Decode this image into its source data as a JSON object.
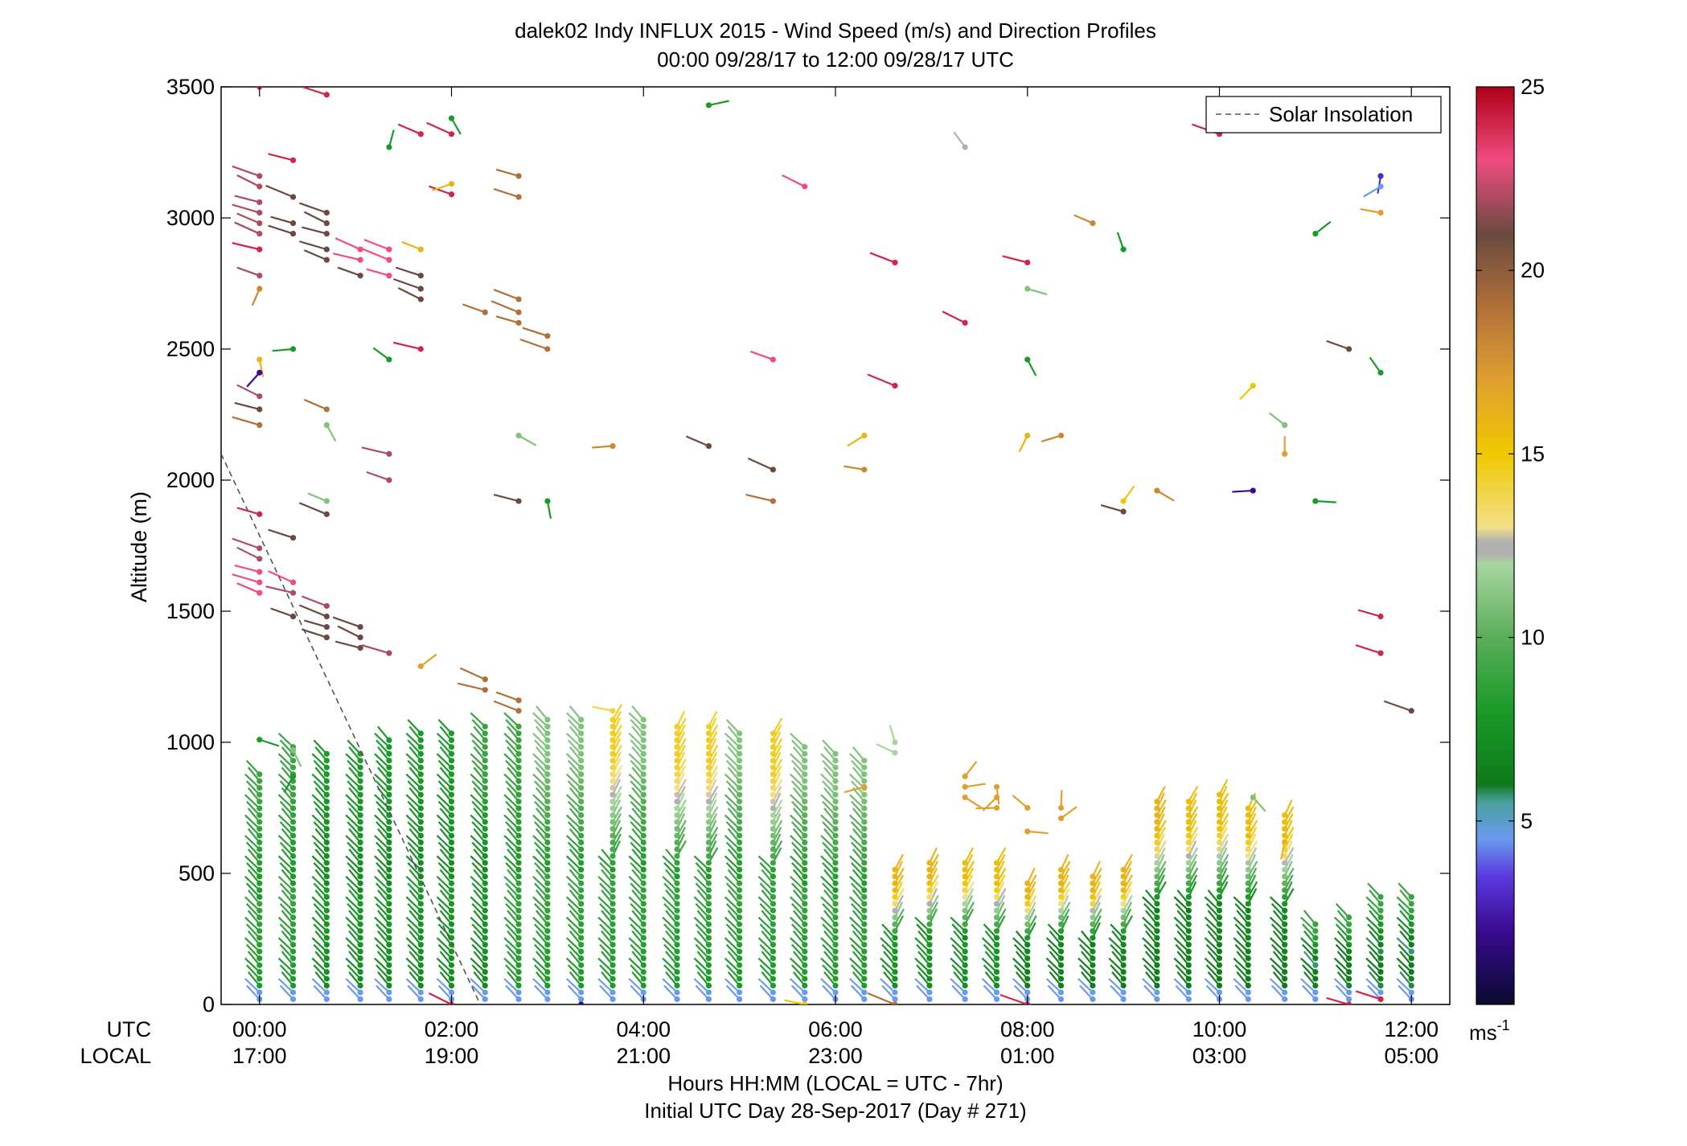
{
  "chart_data": {
    "type": "scatter",
    "title": "dalek02 Indy INFLUX 2015 - Wind Speed (m/s) and Direction Profiles",
    "subtitle": "00:00 09/28/17 to 12:00 09/28/17  UTC",
    "ylabel": "Altitude (m)",
    "xlabel": "Hours HH:MM  (LOCAL = UTC - 7hr)",
    "xlabel2": "Initial UTC Day 28-Sep-2017 (Day # 271)",
    "row_label_utc": "UTC",
    "row_label_local": "LOCAL",
    "xlim": [
      -0.4,
      12.4
    ],
    "ylim": [
      0,
      3500
    ],
    "yticks": [
      0,
      500,
      1000,
      1500,
      2000,
      2500,
      3000,
      3500
    ],
    "ytick_labels": [
      "0",
      "500",
      "1000",
      "1500",
      "2000",
      "2500",
      "3000",
      "3500"
    ],
    "xticks": [
      0,
      2,
      4,
      6,
      8,
      10,
      12
    ],
    "xtick_labels_utc": [
      "00:00",
      "02:00",
      "04:00",
      "06:00",
      "08:00",
      "10:00",
      "12:00"
    ],
    "xtick_labels_local": [
      "17:00",
      "19:00",
      "21:00",
      "23:00",
      "01:00",
      "03:00",
      "05:00"
    ],
    "legend": {
      "label": "Solar Insolation",
      "position": "top-right"
    },
    "solar_insolation": [
      [
        -0.4,
        2100
      ],
      [
        2.3,
        0
      ]
    ],
    "colorbar": {
      "label": "ms",
      "label_sup": "-1",
      "range": [
        0,
        25
      ],
      "ticks": [
        5,
        10,
        15,
        20,
        25
      ],
      "tick_labels": [
        "5",
        "10",
        "15",
        "20",
        "25"
      ],
      "stops": [
        [
          0,
          "#0a0a30"
        ],
        [
          2,
          "#3a0a90"
        ],
        [
          3.5,
          "#5a3adf"
        ],
        [
          4.5,
          "#6a9aee"
        ],
        [
          5.5,
          "#4ba0a0"
        ],
        [
          6,
          "#0f7a1a"
        ],
        [
          8,
          "#1a9a28"
        ],
        [
          10,
          "#5aae5a"
        ],
        [
          12,
          "#a8d5a0"
        ],
        [
          12.3,
          "#b0b0b0"
        ],
        [
          12.6,
          "#b0b0b0"
        ],
        [
          13,
          "#f2e08a"
        ],
        [
          15,
          "#f0c800"
        ],
        [
          17,
          "#e0a030"
        ],
        [
          19,
          "#b07038"
        ],
        [
          21,
          "#6a4a40"
        ],
        [
          23,
          "#f04c80"
        ],
        [
          25,
          "#b00018"
        ]
      ]
    },
    "wind_profiles_low": [
      {
        "t": 0.0,
        "top": 900,
        "lower_speed": 8,
        "upper_speed": 9
      },
      {
        "t": 0.35,
        "top": 1000,
        "lower_speed": 8,
        "upper_speed": 9
      },
      {
        "t": 0.7,
        "top": 980,
        "lower_speed": 7,
        "upper_speed": 8
      },
      {
        "t": 1.05,
        "top": 960,
        "lower_speed": 7,
        "upper_speed": 8
      },
      {
        "t": 1.35,
        "top": 1020,
        "lower_speed": 7,
        "upper_speed": 8
      },
      {
        "t": 1.68,
        "top": 1050,
        "lower_speed": 7,
        "upper_speed": 8
      },
      {
        "t": 2.0,
        "top": 1040,
        "lower_speed": 7,
        "upper_speed": 8
      },
      {
        "t": 2.35,
        "top": 1060,
        "lower_speed": 7,
        "upper_speed": 9
      },
      {
        "t": 2.7,
        "top": 1080,
        "lower_speed": 8,
        "upper_speed": 9
      },
      {
        "t": 3.0,
        "top": 1100,
        "lower_speed": 8,
        "upper_speed": 11
      },
      {
        "t": 3.35,
        "top": 1100,
        "lower_speed": 8,
        "upper_speed": 11
      },
      {
        "t": 3.68,
        "top": 1110,
        "lower_speed": 8,
        "upper_speed": 14.5
      },
      {
        "t": 4.0,
        "top": 1100,
        "lower_speed": 8,
        "upper_speed": 11
      },
      {
        "t": 4.35,
        "top": 1080,
        "lower_speed": 8,
        "upper_speed": 14.5
      },
      {
        "t": 4.68,
        "top": 1070,
        "lower_speed": 8,
        "upper_speed": 14.5
      },
      {
        "t": 5.0,
        "top": 1050,
        "lower_speed": 8,
        "upper_speed": 11
      },
      {
        "t": 5.35,
        "top": 1040,
        "lower_speed": 8,
        "upper_speed": 14.5
      },
      {
        "t": 5.68,
        "top": 1000,
        "lower_speed": 8,
        "upper_speed": 11
      },
      {
        "t": 6.0,
        "top": 960,
        "lower_speed": 8,
        "upper_speed": 11
      },
      {
        "t": 6.3,
        "top": 940,
        "lower_speed": 8,
        "upper_speed": 11
      },
      {
        "t": 6.62,
        "top": 520,
        "lower_speed": 7,
        "upper_speed": 16
      },
      {
        "t": 6.98,
        "top": 560,
        "lower_speed": 7,
        "upper_speed": 16
      },
      {
        "t": 7.35,
        "top": 560,
        "lower_speed": 7,
        "upper_speed": 15.5
      },
      {
        "t": 7.68,
        "top": 540,
        "lower_speed": 7,
        "upper_speed": 15.5
      },
      {
        "t": 8.0,
        "top": 480,
        "lower_speed": 6,
        "upper_speed": 16
      },
      {
        "t": 8.35,
        "top": 520,
        "lower_speed": 6,
        "upper_speed": 16
      },
      {
        "t": 8.68,
        "top": 500,
        "lower_speed": 6,
        "upper_speed": 16
      },
      {
        "t": 9.0,
        "top": 520,
        "lower_speed": 6,
        "upper_speed": 16
      },
      {
        "t": 9.35,
        "top": 780,
        "lower_speed": 6,
        "upper_speed": 16
      },
      {
        "t": 9.68,
        "top": 780,
        "lower_speed": 6,
        "upper_speed": 15.5
      },
      {
        "t": 10.0,
        "top": 800,
        "lower_speed": 6,
        "upper_speed": 15.5
      },
      {
        "t": 10.3,
        "top": 760,
        "lower_speed": 6,
        "upper_speed": 15.5
      },
      {
        "t": 10.68,
        "top": 740,
        "lower_speed": 6,
        "upper_speed": 15.5
      },
      {
        "t": 11.0,
        "top": 320,
        "lower_speed": 5.5,
        "upper_speed": 9
      },
      {
        "t": 11.35,
        "top": 340,
        "lower_speed": 5.5,
        "upper_speed": 9
      },
      {
        "t": 11.68,
        "top": 420,
        "lower_speed": 5.5,
        "upper_speed": 9
      },
      {
        "t": 12.0,
        "top": 430,
        "lower_speed": 5.5,
        "upper_speed": 9
      }
    ],
    "wind_barbs_high": [
      {
        "t": 0.0,
        "z": 3500,
        "spd": 24
      },
      {
        "t": 0.7,
        "z": 3470,
        "spd": 24
      },
      {
        "t": 0.0,
        "z": 3160,
        "spd": 22
      },
      {
        "t": 0.0,
        "z": 3120,
        "spd": 22
      },
      {
        "t": 0.0,
        "z": 3060,
        "spd": 22
      },
      {
        "t": 0.0,
        "z": 3020,
        "spd": 22
      },
      {
        "t": 0.0,
        "z": 2980,
        "spd": 22
      },
      {
        "t": 0.0,
        "z": 2940,
        "spd": 22
      },
      {
        "t": 0.0,
        "z": 2880,
        "spd": 24
      },
      {
        "t": 0.0,
        "z": 2780,
        "spd": 22
      },
      {
        "t": 0.0,
        "z": 2730,
        "spd": 18
      },
      {
        "t": 0.35,
        "z": 3080,
        "spd": 21
      },
      {
        "t": 0.35,
        "z": 2980,
        "spd": 21
      },
      {
        "t": 0.35,
        "z": 2940,
        "spd": 21
      },
      {
        "t": 0.7,
        "z": 3020,
        "spd": 21
      },
      {
        "t": 0.7,
        "z": 2980,
        "spd": 21
      },
      {
        "t": 0.7,
        "z": 2940,
        "spd": 21
      },
      {
        "t": 0.7,
        "z": 2880,
        "spd": 21
      },
      {
        "t": 0.7,
        "z": 2840,
        "spd": 21
      },
      {
        "t": 1.05,
        "z": 2880,
        "spd": 23
      },
      {
        "t": 1.05,
        "z": 2840,
        "spd": 23
      },
      {
        "t": 1.05,
        "z": 2780,
        "spd": 21
      },
      {
        "t": 1.35,
        "z": 2880,
        "spd": 23
      },
      {
        "t": 1.35,
        "z": 2840,
        "spd": 23
      },
      {
        "t": 1.35,
        "z": 2780,
        "spd": 23
      },
      {
        "t": 1.68,
        "z": 2780,
        "spd": 21
      },
      {
        "t": 1.68,
        "z": 2730,
        "spd": 21
      },
      {
        "t": 1.68,
        "z": 2690,
        "spd": 21
      },
      {
        "t": 0.35,
        "z": 3220,
        "spd": 24
      },
      {
        "t": 1.35,
        "z": 3270,
        "spd": 8
      },
      {
        "t": 1.68,
        "z": 3320,
        "spd": 24
      },
      {
        "t": 2.0,
        "z": 3320,
        "spd": 24
      },
      {
        "t": 2.0,
        "z": 3380,
        "spd": 8
      },
      {
        "t": 2.0,
        "z": 3090,
        "spd": 24
      },
      {
        "t": 2.0,
        "z": 3130,
        "spd": 16
      },
      {
        "t": 1.68,
        "z": 2880,
        "spd": 16
      },
      {
        "t": 2.7,
        "z": 3160,
        "spd": 19
      },
      {
        "t": 2.7,
        "z": 3080,
        "spd": 19
      },
      {
        "t": 4.68,
        "z": 3430,
        "spd": 8
      },
      {
        "t": 5.68,
        "z": 3120,
        "spd": 23
      },
      {
        "t": 0.0,
        "z": 2460,
        "spd": 16
      },
      {
        "t": 0.0,
        "z": 2410,
        "spd": 2
      },
      {
        "t": 0.35,
        "z": 2500,
        "spd": 8
      },
      {
        "t": 1.35,
        "z": 2460,
        "spd": 8
      },
      {
        "t": 1.68,
        "z": 2500,
        "spd": 24
      },
      {
        "t": 2.35,
        "z": 2640,
        "spd": 19
      },
      {
        "t": 2.7,
        "z": 2690,
        "spd": 19
      },
      {
        "t": 2.7,
        "z": 2640,
        "spd": 19
      },
      {
        "t": 2.7,
        "z": 2600,
        "spd": 19
      },
      {
        "t": 3.0,
        "z": 2550,
        "spd": 19
      },
      {
        "t": 3.0,
        "z": 2500,
        "spd": 19
      },
      {
        "t": 0.0,
        "z": 2320,
        "spd": 22
      },
      {
        "t": 0.0,
        "z": 2270,
        "spd": 21
      },
      {
        "t": 0.0,
        "z": 2210,
        "spd": 19
      },
      {
        "t": 0.7,
        "z": 2270,
        "spd": 19
      },
      {
        "t": 0.7,
        "z": 2210,
        "spd": 11
      },
      {
        "t": 1.35,
        "z": 2100,
        "spd": 22
      },
      {
        "t": 1.35,
        "z": 2000,
        "spd": 22
      },
      {
        "t": 0.7,
        "z": 1920,
        "spd": 11
      },
      {
        "t": 0.7,
        "z": 1870,
        "spd": 21
      },
      {
        "t": 0.0,
        "z": 1870,
        "spd": 24
      },
      {
        "t": 0.35,
        "z": 1780,
        "spd": 21
      },
      {
        "t": 2.7,
        "z": 2170,
        "spd": 11
      },
      {
        "t": 3.0,
        "z": 1920,
        "spd": 8
      },
      {
        "t": 2.7,
        "z": 1920,
        "spd": 21
      },
      {
        "t": 3.68,
        "z": 2130,
        "spd": 18
      },
      {
        "t": 4.68,
        "z": 2130,
        "spd": 21
      },
      {
        "t": 5.35,
        "z": 2040,
        "spd": 21
      },
      {
        "t": 5.35,
        "z": 1920,
        "spd": 19
      },
      {
        "t": 5.35,
        "z": 2460,
        "spd": 23
      },
      {
        "t": 6.62,
        "z": 2830,
        "spd": 24
      },
      {
        "t": 6.62,
        "z": 2360,
        "spd": 24
      },
      {
        "t": 6.3,
        "z": 2170,
        "spd": 16
      },
      {
        "t": 6.3,
        "z": 2040,
        "spd": 18
      },
      {
        "t": 7.35,
        "z": 3270,
        "spd": 12.4
      },
      {
        "t": 7.35,
        "z": 2600,
        "spd": 24
      },
      {
        "t": 8.0,
        "z": 2830,
        "spd": 24
      },
      {
        "t": 8.0,
        "z": 2730,
        "spd": 11
      },
      {
        "t": 8.0,
        "z": 2460,
        "spd": 8
      },
      {
        "t": 8.0,
        "z": 2170,
        "spd": 16
      },
      {
        "t": 8.35,
        "z": 2170,
        "spd": 18
      },
      {
        "t": 8.68,
        "z": 2980,
        "spd": 18
      },
      {
        "t": 9.0,
        "z": 2880,
        "spd": 8
      },
      {
        "t": 9.0,
        "z": 1920,
        "spd": 15
      },
      {
        "t": 9.0,
        "z": 1880,
        "spd": 21
      },
      {
        "t": 9.35,
        "z": 1960,
        "spd": 18
      },
      {
        "t": 10.0,
        "z": 3320,
        "spd": 24
      },
      {
        "t": 10.35,
        "z": 2360,
        "spd": 15
      },
      {
        "t": 10.35,
        "z": 1960,
        "spd": 2
      },
      {
        "t": 10.68,
        "z": 2210,
        "spd": 11
      },
      {
        "t": 10.68,
        "z": 2100,
        "spd": 17
      },
      {
        "t": 11.0,
        "z": 2940,
        "spd": 8
      },
      {
        "t": 11.0,
        "z": 1920,
        "spd": 8
      },
      {
        "t": 11.35,
        "z": 2500,
        "spd": 21
      },
      {
        "t": 11.68,
        "z": 3160,
        "spd": 3
      },
      {
        "t": 11.68,
        "z": 3120,
        "spd": 4.5
      },
      {
        "t": 11.68,
        "z": 3020,
        "spd": 17
      },
      {
        "t": 11.68,
        "z": 2410,
        "spd": 8
      },
      {
        "t": 0.0,
        "z": 1740,
        "spd": 22
      },
      {
        "t": 0.0,
        "z": 1700,
        "spd": 22
      },
      {
        "t": 0.0,
        "z": 1650,
        "spd": 23
      },
      {
        "t": 0.0,
        "z": 1610,
        "spd": 23
      },
      {
        "t": 0.0,
        "z": 1570,
        "spd": 23
      },
      {
        "t": 0.35,
        "z": 1610,
        "spd": 23
      },
      {
        "t": 0.35,
        "z": 1570,
        "spd": 22
      },
      {
        "t": 0.35,
        "z": 1480,
        "spd": 21
      },
      {
        "t": 0.7,
        "z": 1520,
        "spd": 22
      },
      {
        "t": 0.7,
        "z": 1480,
        "spd": 21
      },
      {
        "t": 0.7,
        "z": 1440,
        "spd": 21
      },
      {
        "t": 0.7,
        "z": 1400,
        "spd": 21
      },
      {
        "t": 1.05,
        "z": 1440,
        "spd": 21
      },
      {
        "t": 1.05,
        "z": 1400,
        "spd": 21
      },
      {
        "t": 1.05,
        "z": 1360,
        "spd": 21
      },
      {
        "t": 1.35,
        "z": 1340,
        "spd": 22
      },
      {
        "t": 1.68,
        "z": 1290,
        "spd": 17
      },
      {
        "t": 2.35,
        "z": 1240,
        "spd": 19
      },
      {
        "t": 2.35,
        "z": 1200,
        "spd": 19
      },
      {
        "t": 2.7,
        "z": 1160,
        "spd": 19
      },
      {
        "t": 2.7,
        "z": 1120,
        "spd": 19
      },
      {
        "t": 3.68,
        "z": 1120,
        "spd": 14
      },
      {
        "t": 11.68,
        "z": 1480,
        "spd": 24
      },
      {
        "t": 11.68,
        "z": 1340,
        "spd": 24
      },
      {
        "t": 12.0,
        "z": 1120,
        "spd": 21
      },
      {
        "t": 0.0,
        "z": 1010,
        "spd": 8
      },
      {
        "t": 0.35,
        "z": 970,
        "spd": 11
      },
      {
        "t": 0.35,
        "z": 870,
        "spd": 8
      },
      {
        "t": 6.3,
        "z": 830,
        "spd": 17
      },
      {
        "t": 6.62,
        "z": 960,
        "spd": 12
      },
      {
        "t": 6.62,
        "z": 1000,
        "spd": 12
      },
      {
        "t": 7.35,
        "z": 870,
        "spd": 17
      },
      {
        "t": 7.35,
        "z": 830,
        "spd": 17
      },
      {
        "t": 7.35,
        "z": 790,
        "spd": 17
      },
      {
        "t": 7.68,
        "z": 830,
        "spd": 17
      },
      {
        "t": 7.68,
        "z": 790,
        "spd": 17
      },
      {
        "t": 7.68,
        "z": 750,
        "spd": 17
      },
      {
        "t": 8.0,
        "z": 750,
        "spd": 17
      },
      {
        "t": 8.35,
        "z": 750,
        "spd": 17
      },
      {
        "t": 8.35,
        "z": 710,
        "spd": 17
      },
      {
        "t": 8.0,
        "z": 660,
        "spd": 17
      },
      {
        "t": 10.35,
        "z": 790,
        "spd": 11
      },
      {
        "t": 10.68,
        "z": 620,
        "spd": 16
      },
      {
        "t": 3.35,
        "z": 0,
        "spd": 2
      },
      {
        "t": 5.68,
        "z": 0,
        "spd": 15
      },
      {
        "t": 6.62,
        "z": 0,
        "spd": 19
      },
      {
        "t": 11.35,
        "z": 0,
        "spd": 24
      },
      {
        "t": 11.68,
        "z": 20,
        "spd": 24
      },
      {
        "t": 8.0,
        "z": 0,
        "spd": 24
      },
      {
        "t": 2.0,
        "z": 0,
        "spd": 24
      }
    ]
  }
}
